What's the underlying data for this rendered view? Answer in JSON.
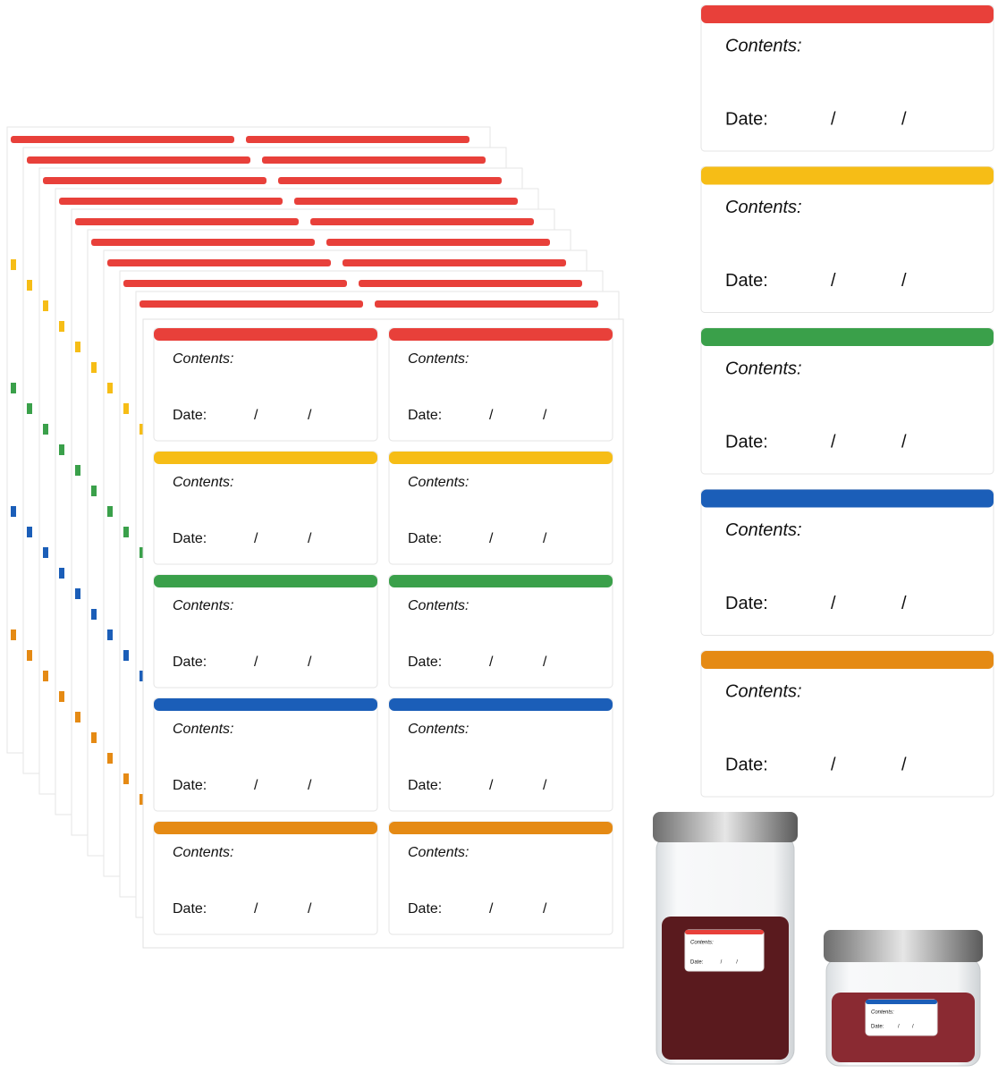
{
  "large_labels": [
    {
      "color": "#e8403a",
      "contents": "Contents:",
      "date": "Date:",
      "slash1": "/",
      "slash2": "/"
    },
    {
      "color": "#f6bd16",
      "contents": "Contents:",
      "date": "Date:",
      "slash1": "/",
      "slash2": "/"
    },
    {
      "color": "#3aa04a",
      "contents": "Contents:",
      "date": "Date:",
      "slash1": "/",
      "slash2": "/"
    },
    {
      "color": "#1b5eb8",
      "contents": "Contents:",
      "date": "Date:",
      "slash1": "/",
      "slash2": "/"
    },
    {
      "color": "#e58a14",
      "contents": "Contents:",
      "date": "Date:",
      "slash1": "/",
      "slash2": "/"
    }
  ],
  "sheet": {
    "rows": [
      {
        "color": "#e8403a",
        "labels": [
          {
            "contents": "Contents:",
            "date": "Date:",
            "slash1": "/",
            "slash2": "/"
          },
          {
            "contents": "Contents:",
            "date": "Date:",
            "slash1": "/",
            "slash2": "/"
          }
        ]
      },
      {
        "color": "#f6bd16",
        "labels": [
          {
            "contents": "Contents:",
            "date": "Date:",
            "slash1": "/",
            "slash2": "/"
          },
          {
            "contents": "Contents:",
            "date": "Date:",
            "slash1": "/",
            "slash2": "/"
          }
        ]
      },
      {
        "color": "#3aa04a",
        "labels": [
          {
            "contents": "Contents:",
            "date": "Date:",
            "slash1": "/",
            "slash2": "/"
          },
          {
            "contents": "Contents:",
            "date": "Date:",
            "slash1": "/",
            "slash2": "/"
          }
        ]
      },
      {
        "color": "#1b5eb8",
        "labels": [
          {
            "contents": "Contents:",
            "date": "Date:",
            "slash1": "/",
            "slash2": "/"
          },
          {
            "contents": "Contents:",
            "date": "Date:",
            "slash1": "/",
            "slash2": "/"
          }
        ]
      },
      {
        "color": "#e58a14",
        "labels": [
          {
            "contents": "Contents:",
            "date": "Date:",
            "slash1": "/",
            "slash2": "/"
          },
          {
            "contents": "Contents:",
            "date": "Date:",
            "slash1": "/",
            "slash2": "/"
          }
        ]
      }
    ]
  },
  "jar_labels": [
    {
      "color": "#e8403a",
      "contents": "Contents:",
      "date": "Date:",
      "slash1": "/",
      "slash2": "/"
    },
    {
      "color": "#1b5eb8",
      "contents": "Contents:",
      "date": "Date:",
      "slash1": "/",
      "slash2": "/"
    }
  ]
}
